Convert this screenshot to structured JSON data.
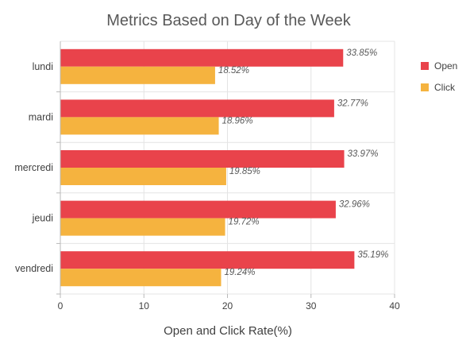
{
  "chart_data": {
    "type": "bar",
    "orientation": "horizontal",
    "title": "Metrics Based on Day of the Week",
    "xlabel": "Open and Click Rate(%)",
    "ylabel": "",
    "categories": [
      "lundi",
      "mardi",
      "mercredi",
      "jeudi",
      "vendredi"
    ],
    "series": [
      {
        "name": "Open",
        "color": "#e9434b",
        "values": [
          33.85,
          32.77,
          33.97,
          32.96,
          35.19
        ],
        "labels": [
          "33.85%",
          "32.77%",
          "33.97%",
          "32.96%",
          "35.19%"
        ]
      },
      {
        "name": "Click",
        "color": "#f5b33f",
        "values": [
          18.52,
          18.96,
          19.85,
          19.72,
          19.24
        ],
        "labels": [
          "18.52%",
          "18.96%",
          "19.85%",
          "19.72%",
          "19.24%"
        ]
      }
    ],
    "xlim": [
      0,
      40
    ],
    "xticks": [
      0,
      10,
      20,
      30,
      40
    ],
    "xtick_labels": [
      "0",
      "10",
      "20",
      "30",
      "40"
    ],
    "grid": true,
    "legend_position": "top-right"
  }
}
